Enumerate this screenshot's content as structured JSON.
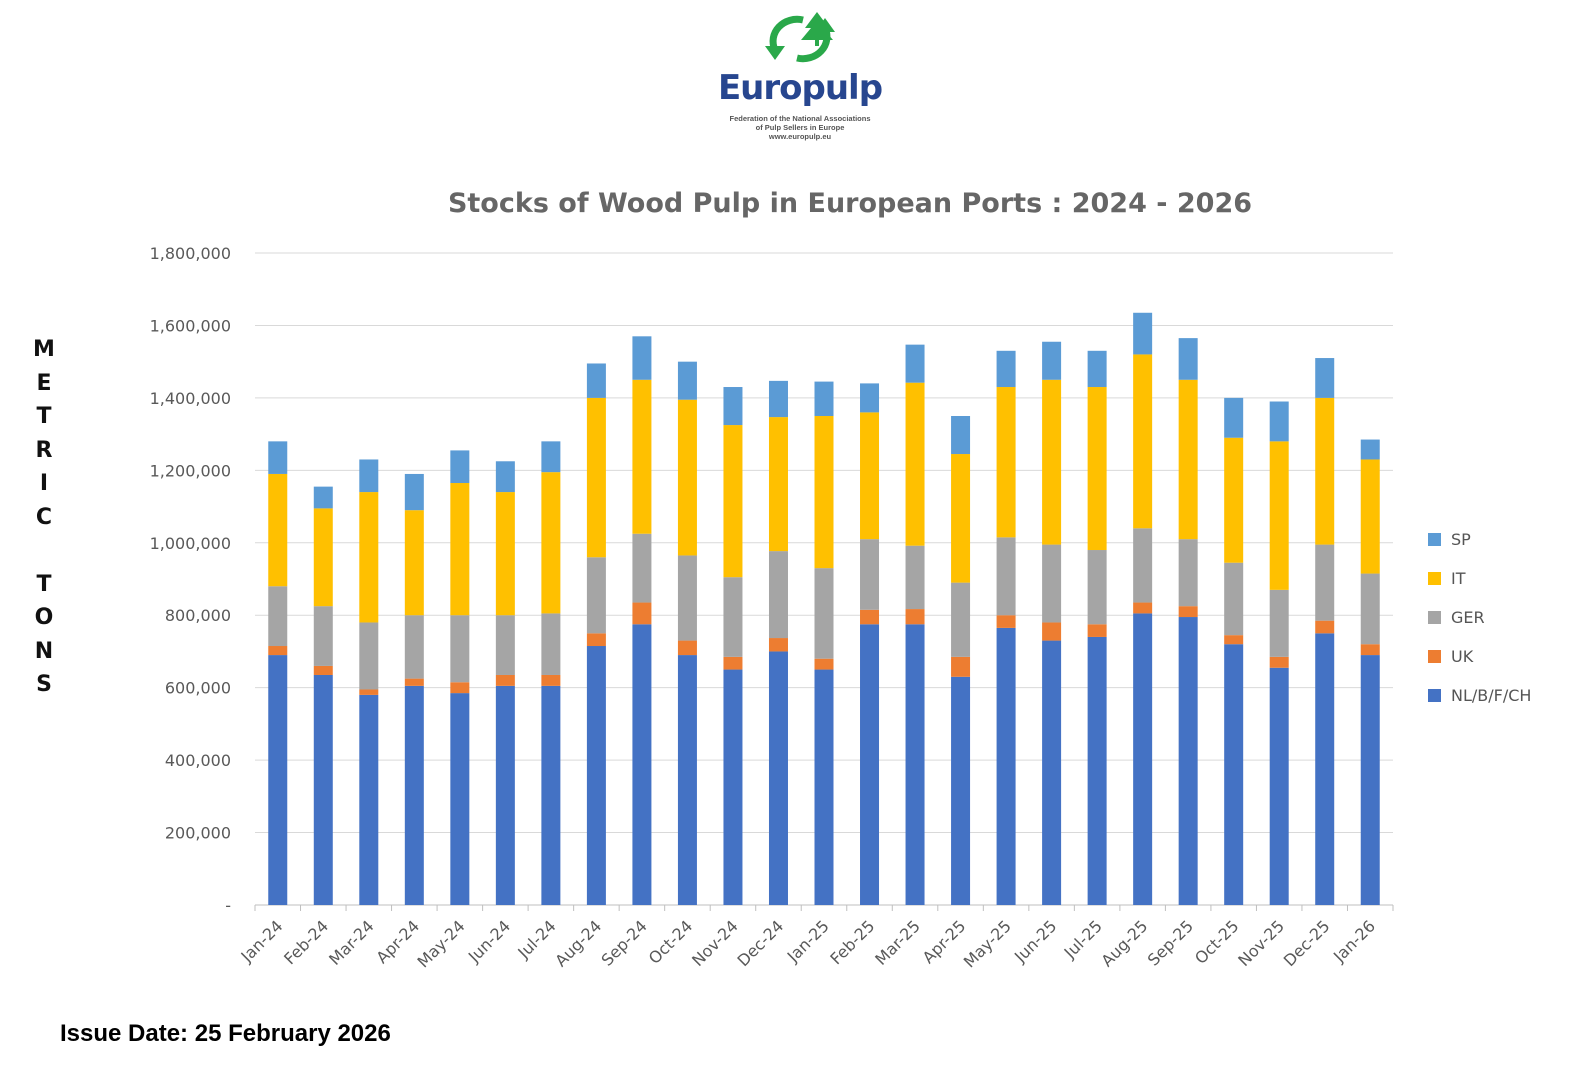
{
  "logo": {
    "brand": "Europulp",
    "subtitle_lines": [
      "Federation of the National Associations",
      "of Pulp Sellers in Europe",
      "www.europulp.eu"
    ],
    "icon": "recycle-trees-icon",
    "colors": {
      "green": "#2aa84a",
      "blue": "#27468f"
    }
  },
  "ylabel_vertical": "METRIC TONS",
  "issue_date": "Issue Date: 25 February 2026",
  "chart_data": {
    "type": "bar",
    "stacked": true,
    "title": "Stocks of Wood Pulp in European Ports : 2024 - 2026",
    "xlabel": "",
    "ylabel": "METRIC TONS",
    "ylim": [
      0,
      1800000
    ],
    "yticks": [
      0,
      200000,
      400000,
      600000,
      800000,
      1000000,
      1200000,
      1400000,
      1600000,
      1800000
    ],
    "ytick_labels": [
      "-",
      "200,000",
      "400,000",
      "600,000",
      "800,000",
      "1,000,000",
      "1,200,000",
      "1,400,000",
      "1,600,000",
      "1,800,000"
    ],
    "grid": true,
    "legend_position": "right",
    "categories": [
      "Jan-24",
      "Feb-24",
      "Mar-24",
      "Apr-24",
      "May-24",
      "Jun-24",
      "Jul-24",
      "Aug-24",
      "Sep-24",
      "Oct-24",
      "Nov-24",
      "Dec-24",
      "Jan-25",
      "Feb-25",
      "Mar-25",
      "Apr-25",
      "May-25",
      "Jun-25",
      "Jul-25",
      "Aug-25",
      "Sep-25",
      "Oct-25",
      "Nov-25",
      "Dec-25",
      "Jan-26"
    ],
    "series": [
      {
        "name": "NL/B/F/CH",
        "color": "#4472c4",
        "values": [
          690000,
          635000,
          580000,
          605000,
          585000,
          605000,
          605000,
          715000,
          775000,
          690000,
          650000,
          700000,
          650000,
          775000,
          775000,
          630000,
          765000,
          730000,
          740000,
          805000,
          795000,
          720000,
          655000,
          750000,
          690000
        ]
      },
      {
        "name": "UK",
        "color": "#ed7d31",
        "values": [
          25000,
          25000,
          15000,
          20000,
          30000,
          30000,
          30000,
          35000,
          60000,
          40000,
          35000,
          37000,
          30000,
          40000,
          42000,
          55000,
          35000,
          50000,
          35000,
          30000,
          30000,
          25000,
          30000,
          35000,
          30000
        ]
      },
      {
        "name": "GER",
        "color": "#a5a5a5",
        "values": [
          165000,
          165000,
          185000,
          175000,
          185000,
          165000,
          170000,
          210000,
          190000,
          235000,
          220000,
          240000,
          250000,
          195000,
          175000,
          205000,
          215000,
          215000,
          205000,
          205000,
          185000,
          200000,
          185000,
          210000,
          195000
        ]
      },
      {
        "name": "IT",
        "color": "#ffc000",
        "values": [
          310000,
          270000,
          360000,
          290000,
          365000,
          340000,
          390000,
          440000,
          425000,
          430000,
          420000,
          370000,
          420000,
          350000,
          450000,
          355000,
          415000,
          455000,
          450000,
          480000,
          440000,
          345000,
          410000,
          405000,
          315000
        ]
      },
      {
        "name": "SP",
        "color": "#5b9bd5",
        "values": [
          90000,
          60000,
          90000,
          100000,
          90000,
          85000,
          85000,
          95000,
          120000,
          105000,
          105000,
          100000,
          95000,
          80000,
          105000,
          105000,
          100000,
          105000,
          100000,
          115000,
          115000,
          110000,
          110000,
          110000,
          55000
        ]
      }
    ]
  }
}
